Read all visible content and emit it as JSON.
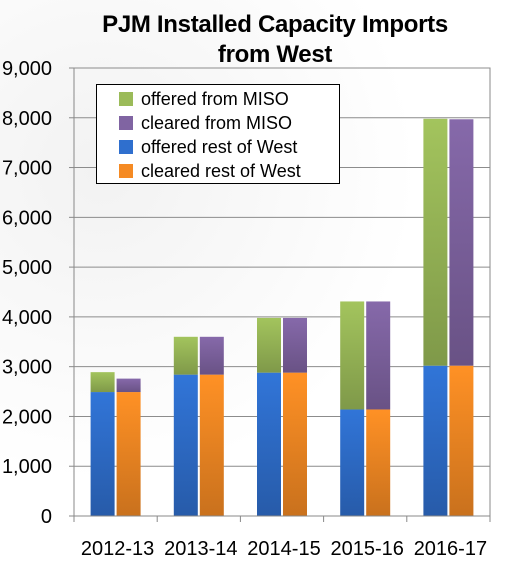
{
  "title_line1": "PJM Installed Capacity Imports",
  "title_line2": "from West",
  "chart_data": {
    "type": "bar",
    "stacked": true,
    "title": "PJM Installed Capacity Imports from West",
    "categories": [
      "2012-13",
      "2013-14",
      "2014-15",
      "2015-16",
      "2016-17"
    ],
    "ylim": [
      0,
      9000
    ],
    "yticks": [
      "0",
      "1,000",
      "2,000",
      "3,000",
      "4,000",
      "5,000",
      "6,000",
      "7,000",
      "8,000",
      "9,000"
    ],
    "grid": true,
    "legend_position": "top-left",
    "series": [
      {
        "name": "offered from MISO",
        "stack": "offered",
        "color": "#9bbb59",
        "values": [
          400,
          760,
          1100,
          2170,
          4960
        ]
      },
      {
        "name": "cleared from MISO",
        "stack": "cleared",
        "color": "#8064a2",
        "values": [
          270,
          760,
          1100,
          2170,
          4950
        ]
      },
      {
        "name": "offered rest of West",
        "stack": "offered",
        "color": "#2f6fce",
        "values": [
          2490,
          2840,
          2880,
          2140,
          3020
        ]
      },
      {
        "name": "cleared rest of West",
        "stack": "cleared",
        "color": "#f58a23",
        "values": [
          2490,
          2840,
          2880,
          2140,
          3020
        ]
      }
    ]
  }
}
